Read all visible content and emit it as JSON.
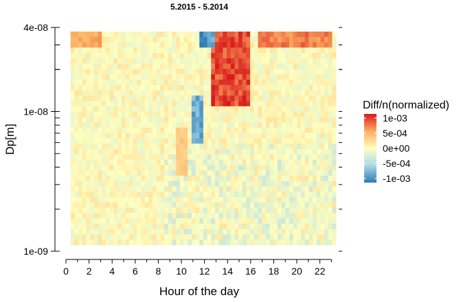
{
  "chart_data": {
    "type": "heatmap",
    "title": "5.2015 - 5.2014",
    "xlabel": "Hour of the day",
    "ylabel": "Dp[m]",
    "x_ticks": [
      "0",
      "2",
      "4",
      "6",
      "8",
      "10",
      "12",
      "14",
      "16",
      "18",
      "20",
      "22"
    ],
    "x_range": [
      0,
      23
    ],
    "y_scale": "log",
    "y_ticks": [
      "1e-09",
      "1e-08",
      "4e-08"
    ],
    "y_range": [
      1e-09,
      4e-08
    ],
    "legend": {
      "title": "Diff/n(normalized)",
      "placement": "right",
      "labels": [
        "1e-03",
        "5e-04",
        "0e+00",
        "-5e-04",
        "-1e-03"
      ],
      "range": [
        -0.001,
        0.001
      ]
    },
    "colors": {
      "max": "#d7191c",
      "high": "#fdae61",
      "zero": "#ffffbf",
      "low": "#abd9e9",
      "min": "#2c7bb6"
    },
    "features": [
      {
        "desc": "strong positive",
        "hours": [
          12.5,
          16
        ],
        "dp": [
          1.1e-08,
          3.8e-08
        ],
        "value": 0.001
      },
      {
        "desc": "positive band top",
        "hours": [
          0,
          3
        ],
        "dp": [
          2.8e-08,
          4e-08
        ],
        "value": 0.0006
      },
      {
        "desc": "positive band top",
        "hours": [
          16.5,
          23
        ],
        "dp": [
          2.8e-08,
          4e-08
        ],
        "value": 0.0008
      },
      {
        "desc": "negative patch",
        "hours": [
          11.5,
          13
        ],
        "dp": [
          2.9e-08,
          4e-08
        ],
        "value": -0.001
      },
      {
        "desc": "negative streak",
        "hours": [
          11,
          12
        ],
        "dp": [
          6e-09,
          1.3e-08
        ],
        "value": -0.0009
      },
      {
        "desc": "weak positive",
        "hours": [
          9.5,
          10.5
        ],
        "dp": [
          3.5e-09,
          8e-09
        ],
        "value": 0.0004
      }
    ]
  }
}
